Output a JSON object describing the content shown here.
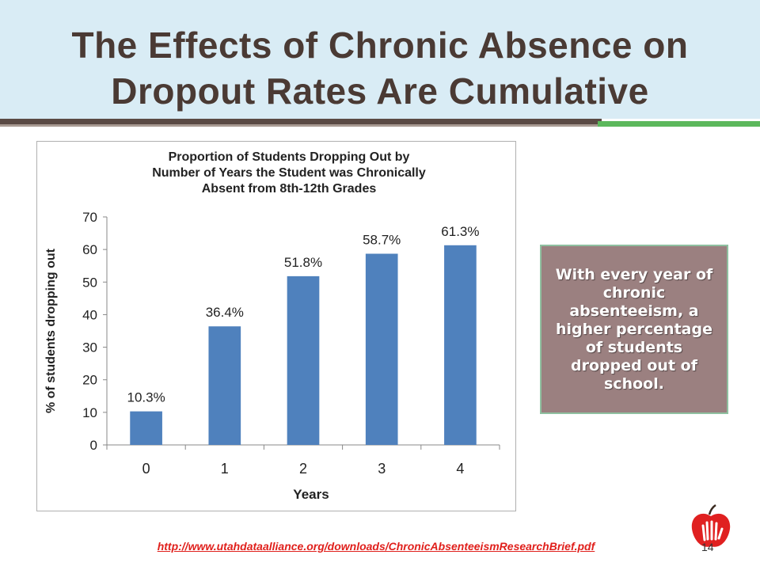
{
  "slide": {
    "title": "The Effects of Chronic Absence on Dropout Rates Are Cumulative",
    "callout_text": "With every year of chronic absenteeism, a higher percentage of students dropped out of school.",
    "source_link": "http://www.utahdataalliance.org/downloads/ChronicAbsenteeismResearchBrief.pdf",
    "page_number": "14"
  },
  "colors": {
    "bar": "#4f81bd",
    "title_text": "#4a3a34",
    "callout_bg": "#9b8080",
    "link": "#e0201c"
  },
  "chart_data": {
    "type": "bar",
    "title_lines": [
      "Proportion of Students Dropping Out by",
      "Number of Years the Student was Chronically",
      "Absent from 8th-12th Grades"
    ],
    "xlabel": "Years",
    "ylabel": "% of students dropping out",
    "categories": [
      "0",
      "1",
      "2",
      "3",
      "4"
    ],
    "values": [
      10.3,
      36.4,
      51.8,
      58.7,
      61.3
    ],
    "data_labels": [
      "10.3%",
      "36.4%",
      "51.8%",
      "58.7%",
      "61.3%"
    ],
    "yticks": [
      "0",
      "10",
      "20",
      "30",
      "40",
      "50",
      "60",
      "70"
    ],
    "ylim": [
      0,
      70
    ],
    "grid": false,
    "legend": "none"
  }
}
